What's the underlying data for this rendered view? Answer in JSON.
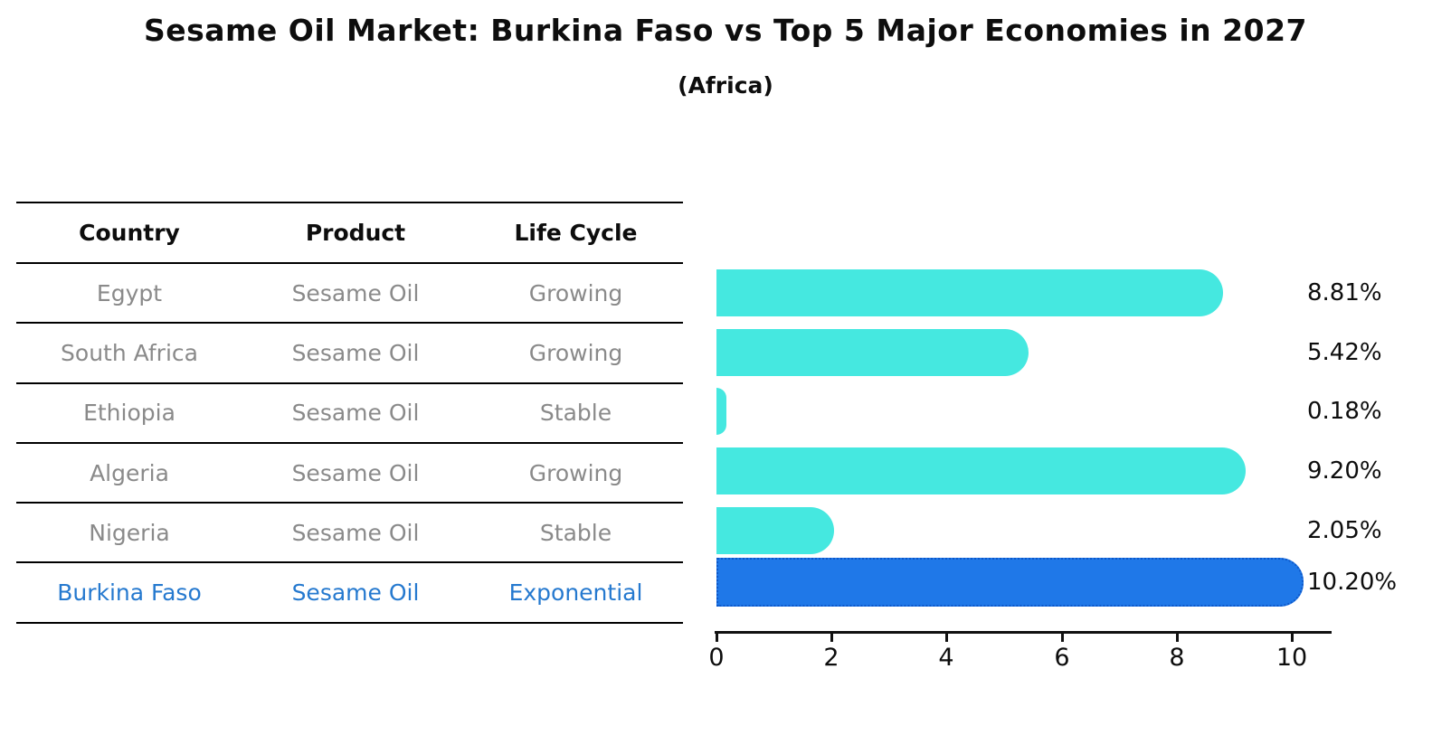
{
  "title": "Sesame Oil Market: Burkina Faso vs Top 5 Major Economies in 2027",
  "subtitle": "(Africa)",
  "table": {
    "headers": [
      "Country",
      "Product",
      "Life Cycle"
    ],
    "rows": [
      {
        "country": "Egypt",
        "product": "Sesame Oil",
        "life_cycle": "Growing",
        "highlighted": false
      },
      {
        "country": "South Africa",
        "product": "Sesame Oil",
        "life_cycle": "Growing",
        "highlighted": false
      },
      {
        "country": "Ethiopia",
        "product": "Sesame Oil",
        "life_cycle": "Stable",
        "highlighted": false
      },
      {
        "country": "Algeria",
        "product": "Sesame Oil",
        "life_cycle": "Growing",
        "highlighted": false
      },
      {
        "country": "Nigeria",
        "product": "Sesame Oil",
        "life_cycle": "Stable",
        "highlighted": false
      },
      {
        "country": "Burkina Faso",
        "product": "Sesame Oil",
        "life_cycle": "Exponential",
        "highlighted": true
      }
    ]
  },
  "chart_data": {
    "type": "bar",
    "orientation": "horizontal",
    "title": "Sesame Oil Market: Burkina Faso vs Top 5 Major Economies in 2027",
    "subtitle": "(Africa)",
    "categories": [
      "Egypt",
      "South Africa",
      "Ethiopia",
      "Algeria",
      "Nigeria",
      "Burkina Faso"
    ],
    "values": [
      8.81,
      5.42,
      0.18,
      9.2,
      2.05,
      10.2
    ],
    "value_labels": [
      "8.81%",
      "5.42%",
      "0.18%",
      "9.20%",
      "2.05%",
      "10.20%"
    ],
    "unit": "%",
    "xlabel": "",
    "ylabel": "",
    "xlim": [
      0,
      10.7
    ],
    "xticks": [
      "0",
      "2",
      "4",
      "6",
      "8",
      "10"
    ],
    "grid": false,
    "legend": false,
    "highlight_index": 5,
    "colors": {
      "bar_default": "#45e8e0",
      "bar_highlight": "#1f78e8",
      "bar_highlight_border": "#0d57c9",
      "text_muted": "#8a8a8a",
      "text_highlight": "#2579cf",
      "text_main": "#0d0d0d"
    }
  }
}
